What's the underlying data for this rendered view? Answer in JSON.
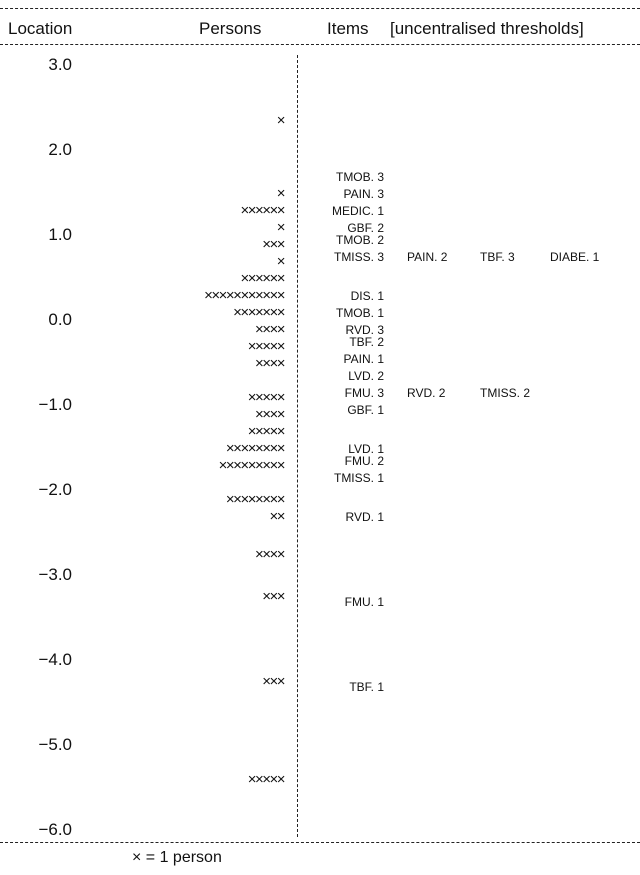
{
  "header": {
    "location": "Location",
    "persons": "Persons",
    "items": "Items",
    "thresholds": "[uncentralised thresholds]"
  },
  "footer": {
    "legend": "× = 1 person"
  },
  "chart_data": {
    "type": "table",
    "title": "",
    "ylim": [
      -6.0,
      3.0
    ],
    "location_ticks": [
      "3.0",
      "2.0",
      "1.0",
      "0.0",
      "−1.0",
      "−2.0",
      "−3.0",
      "−4.0",
      "−5.0",
      "−6.0"
    ],
    "person_rows": [
      {
        "location": 2.35,
        "count": 1
      },
      {
        "location": 1.5,
        "count": 1
      },
      {
        "location": 1.3,
        "count": 6
      },
      {
        "location": 1.1,
        "count": 1
      },
      {
        "location": 0.9,
        "count": 3
      },
      {
        "location": 0.7,
        "count": 1
      },
      {
        "location": 0.5,
        "count": 6
      },
      {
        "location": 0.3,
        "count": 11
      },
      {
        "location": 0.1,
        "count": 7
      },
      {
        "location": -0.1,
        "count": 4
      },
      {
        "location": -0.3,
        "count": 5
      },
      {
        "location": -0.5,
        "count": 4
      },
      {
        "location": -0.9,
        "count": 5
      },
      {
        "location": -1.1,
        "count": 4
      },
      {
        "location": -1.3,
        "count": 5
      },
      {
        "location": -1.5,
        "count": 8
      },
      {
        "location": -1.7,
        "count": 9
      },
      {
        "location": -2.1,
        "count": 8
      },
      {
        "location": -2.3,
        "count": 2
      },
      {
        "location": -2.75,
        "count": 4
      },
      {
        "location": -3.25,
        "count": 3
      },
      {
        "location": -4.25,
        "count": 3
      },
      {
        "location": -5.4,
        "count": 5
      }
    ],
    "item_rows": [
      {
        "location": 1.7,
        "labels": [
          "TMOB. 3"
        ]
      },
      {
        "location": 1.5,
        "labels": [
          "PAIN. 3"
        ]
      },
      {
        "location": 1.3,
        "labels": [
          "MEDIC. 1"
        ]
      },
      {
        "location": 1.1,
        "labels": [
          "GBF. 2"
        ]
      },
      {
        "location": 0.95,
        "labels": [
          "TMOB. 2"
        ]
      },
      {
        "location": 0.75,
        "labels": [
          "TMISS. 3",
          "PAIN. 2",
          "TBF. 3",
          "DIABE. 1"
        ]
      },
      {
        "location": 0.3,
        "labels": [
          "DIS. 1"
        ]
      },
      {
        "location": 0.1,
        "labels": [
          "TMOB. 1"
        ]
      },
      {
        "location": -0.1,
        "labels": [
          "RVD. 3"
        ]
      },
      {
        "location": -0.25,
        "labels": [
          "TBF. 2"
        ]
      },
      {
        "location": -0.45,
        "labels": [
          "PAIN. 1"
        ]
      },
      {
        "location": -0.65,
        "labels": [
          "LVD. 2"
        ]
      },
      {
        "location": -0.85,
        "labels": [
          "FMU. 3",
          "RVD. 2",
          "TMISS. 2"
        ]
      },
      {
        "location": -1.05,
        "labels": [
          "GBF. 1"
        ]
      },
      {
        "location": -1.5,
        "labels": [
          "LVD. 1"
        ]
      },
      {
        "location": -1.65,
        "labels": [
          "FMU. 2"
        ]
      },
      {
        "location": -1.85,
        "labels": [
          "TMISS. 1"
        ]
      },
      {
        "location": -2.3,
        "labels": [
          "RVD. 1"
        ]
      },
      {
        "location": -3.3,
        "labels": [
          "FMU. 1"
        ]
      },
      {
        "location": -4.3,
        "labels": [
          "TBF. 1"
        ]
      }
    ]
  }
}
